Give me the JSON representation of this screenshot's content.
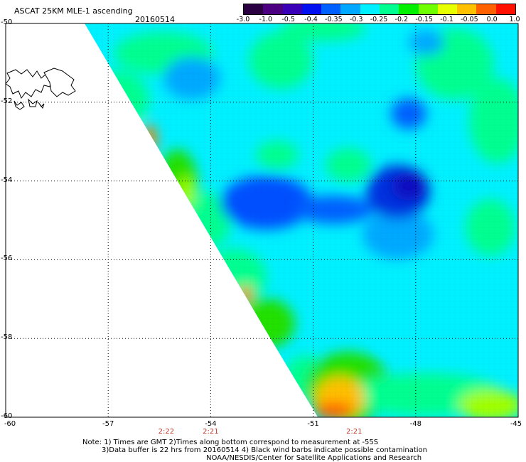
{
  "header": {
    "title": "ASCAT 25KM MLE-1 ascending",
    "date": "20160514"
  },
  "colorbar": {
    "ticks": [
      "-3.0",
      "-1.0",
      "-0.5",
      "-0.4",
      "-0.35",
      "-0.3",
      "-0.25",
      "-0.2",
      "-0.15",
      "-0.1",
      "-0.05",
      "0.0",
      "1.0"
    ],
    "colors": [
      "#2a0040",
      "#4b0082",
      "#3a00b8",
      "#0010f0",
      "#0060ff",
      "#00a8ff",
      "#00f0ff",
      "#00ff90",
      "#00f000",
      "#70ff00",
      "#e8ff00",
      "#ffc000",
      "#ff6000",
      "#ff1000"
    ]
  },
  "map": {
    "lat_labels": [
      "-50",
      "-52",
      "-54",
      "-56",
      "-58",
      "-60"
    ],
    "lon_labels": [
      "-60",
      "-57",
      "-54",
      "-51",
      "-48",
      "-45"
    ],
    "lat_values": [
      -50,
      -52,
      -54,
      -56,
      -58,
      -60
    ],
    "lon_values": [
      -60,
      -57,
      -54,
      -51,
      -48,
      -45
    ],
    "times": [
      {
        "label": "2:22",
        "lon": -55.3
      },
      {
        "label": "2:21",
        "lon": -54.0
      },
      {
        "label": "2:21",
        "lon": -49.8
      }
    ],
    "land": "Falkland Islands coastline",
    "swath_colors": {
      "background": "#00f0ff",
      "low": "#0030e0",
      "lowest": "#1010c0",
      "mid_low": "#00a8ff",
      "high": "#00ff90",
      "higher": "#20e000",
      "very_high": "#a0ff00",
      "peak": "#ffc000",
      "max": "#ff6000"
    }
  },
  "notes": {
    "line1": "Note: 1) Times are GMT 2)Times along bottom correspond to measurement at -55S",
    "line2": "3)Data buffer is 22 hrs from 20160514 4) Black wind barbs indicate possible contamination",
    "line3": "NOAA/NESDIS/Center for Satellite Applications and Research"
  }
}
